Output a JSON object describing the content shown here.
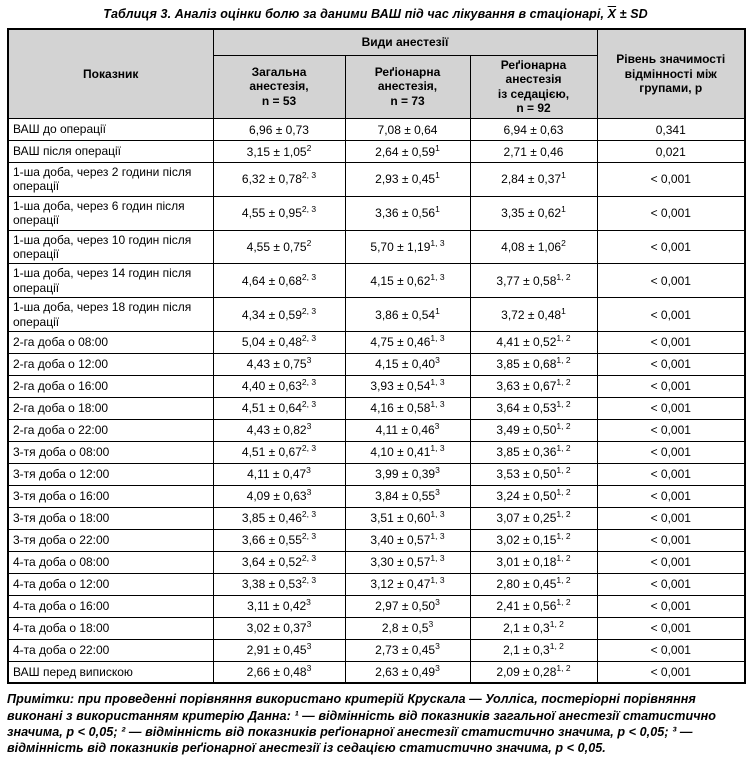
{
  "title": {
    "text": "Таблиця 3. Аналіз оцінки болю за даними ВАШ під час лікування в стаціонарі,",
    "mean_symbol": "X",
    "sd_suffix": "± SD"
  },
  "table": {
    "header": {
      "indicator": "Показник",
      "anesthesia_group": "Види анестезії",
      "col_general": "Загальна\nанестезія,\nn = 53",
      "col_regional": "Реґіонарна\nанестезія,\nn = 73",
      "col_regional_sedation": "Реґіонарна\nанестезія\nіз седацією,\nn = 92",
      "col_p": "Рівень значимості\nвідмінності між\nгрупами, р"
    },
    "rows": [
      {
        "label": "ВАШ до операції",
        "cells": [
          {
            "v": "6,96 ± 0,73",
            "s": ""
          },
          {
            "v": "7,08 ± 0,64",
            "s": ""
          },
          {
            "v": "6,94 ± 0,63",
            "s": ""
          }
        ],
        "p": "0,341"
      },
      {
        "label": "ВАШ після операції",
        "cells": [
          {
            "v": "3,15 ± 1,05",
            "s": "2"
          },
          {
            "v": "2,64 ± 0,59",
            "s": "1"
          },
          {
            "v": "2,71 ± 0,46",
            "s": ""
          }
        ],
        "p": "0,021"
      },
      {
        "label": "1-ша доба, через 2 години після операції",
        "cells": [
          {
            "v": "6,32 ± 0,78",
            "s": "2, 3"
          },
          {
            "v": "2,93 ± 0,45",
            "s": "1"
          },
          {
            "v": "2,84 ± 0,37",
            "s": "1"
          }
        ],
        "p": "< 0,001"
      },
      {
        "label": "1-ша доба, через 6 годин після операції",
        "cells": [
          {
            "v": "4,55 ± 0,95",
            "s": "2, 3"
          },
          {
            "v": "3,36 ± 0,56",
            "s": "1"
          },
          {
            "v": "3,35 ± 0,62",
            "s": "1"
          }
        ],
        "p": "< 0,001"
      },
      {
        "label": "1-ша доба, через 10 годин після операції",
        "cells": [
          {
            "v": "4,55 ± 0,75",
            "s": "2"
          },
          {
            "v": "5,70 ± 1,19",
            "s": "1, 3"
          },
          {
            "v": "4,08 ± 1,06",
            "s": "2"
          }
        ],
        "p": "< 0,001"
      },
      {
        "label": "1-ша доба, через 14 годин після операції",
        "cells": [
          {
            "v": "4,64 ± 0,68",
            "s": "2, 3"
          },
          {
            "v": "4,15 ± 0,62",
            "s": "1, 3"
          },
          {
            "v": "3,77 ± 0,58",
            "s": "1, 2"
          }
        ],
        "p": "< 0,001"
      },
      {
        "label": "1-ша доба, через 18 годин після операції",
        "cells": [
          {
            "v": "4,34 ± 0,59",
            "s": "2, 3"
          },
          {
            "v": "3,86 ± 0,54",
            "s": "1"
          },
          {
            "v": "3,72 ± 0,48",
            "s": "1"
          }
        ],
        "p": "< 0,001"
      },
      {
        "label": "2-га доба о 08:00",
        "cells": [
          {
            "v": "5,04 ± 0,48",
            "s": "2, 3"
          },
          {
            "v": "4,75 ± 0,46",
            "s": "1, 3"
          },
          {
            "v": "4,41 ± 0,52",
            "s": "1, 2"
          }
        ],
        "p": "< 0,001"
      },
      {
        "label": "2-га доба о 12:00",
        "cells": [
          {
            "v": "4,43 ± 0,75",
            "s": "3"
          },
          {
            "v": "4,15 ± 0,40",
            "s": "3"
          },
          {
            "v": "3,85 ± 0,68",
            "s": "1, 2"
          }
        ],
        "p": "< 0,001"
      },
      {
        "label": "2-га доба о 16:00",
        "cells": [
          {
            "v": "4,40 ± 0,63",
            "s": "2, 3"
          },
          {
            "v": "3,93 ± 0,54",
            "s": "1, 3"
          },
          {
            "v": "3,63 ± 0,67",
            "s": "1, 2"
          }
        ],
        "p": "< 0,001"
      },
      {
        "label": "2-га доба о 18:00",
        "cells": [
          {
            "v": "4,51 ± 0,64",
            "s": "2, 3"
          },
          {
            "v": "4,16 ± 0,58",
            "s": "1, 3"
          },
          {
            "v": "3,64 ± 0,53",
            "s": "1, 2"
          }
        ],
        "p": "< 0,001"
      },
      {
        "label": "2-га доба о 22:00",
        "cells": [
          {
            "v": "4,43 ± 0,82",
            "s": "3"
          },
          {
            "v": "4,11 ± 0,46",
            "s": "3"
          },
          {
            "v": "3,49 ± 0,50",
            "s": "1, 2"
          }
        ],
        "p": "< 0,001"
      },
      {
        "label": "3-тя доба о 08:00",
        "cells": [
          {
            "v": "4,51 ± 0,67",
            "s": "2, 3"
          },
          {
            "v": "4,10 ± 0,41",
            "s": "1, 3"
          },
          {
            "v": "3,85 ± 0,36",
            "s": "1, 2"
          }
        ],
        "p": "< 0,001"
      },
      {
        "label": "3-тя доба о 12:00",
        "cells": [
          {
            "v": "4,11 ± 0,47",
            "s": "3"
          },
          {
            "v": "3,99 ± 0,39",
            "s": "3"
          },
          {
            "v": "3,53 ± 0,50",
            "s": "1, 2"
          }
        ],
        "p": "< 0,001"
      },
      {
        "label": "3-тя доба о 16:00",
        "cells": [
          {
            "v": "4,09 ± 0,63",
            "s": "3"
          },
          {
            "v": "3,84 ± 0,55",
            "s": "3"
          },
          {
            "v": "3,24 ± 0,50",
            "s": "1, 2"
          }
        ],
        "p": "< 0,001"
      },
      {
        "label": "3-тя доба о 18:00",
        "cells": [
          {
            "v": "3,85 ± 0,46",
            "s": "2, 3"
          },
          {
            "v": "3,51 ± 0,60",
            "s": "1, 3"
          },
          {
            "v": "3,07 ± 0,25",
            "s": "1, 2"
          }
        ],
        "p": "< 0,001"
      },
      {
        "label": "3-тя доба о 22:00",
        "cells": [
          {
            "v": "3,66 ± 0,55",
            "s": "2, 3"
          },
          {
            "v": "3,40 ± 0,57",
            "s": "1, 3"
          },
          {
            "v": "3,02 ± 0,15",
            "s": "1, 2"
          }
        ],
        "p": "< 0,001"
      },
      {
        "label": "4-та доба о 08:00",
        "cells": [
          {
            "v": "3,64 ± 0,52",
            "s": "2, 3"
          },
          {
            "v": "3,30 ± 0,57",
            "s": "1, 3"
          },
          {
            "v": "3,01 ± 0,18",
            "s": "1, 2"
          }
        ],
        "p": "< 0,001"
      },
      {
        "label": "4-та доба о 12:00",
        "cells": [
          {
            "v": "3,38 ± 0,53",
            "s": "2, 3"
          },
          {
            "v": "3,12 ± 0,47",
            "s": "1, 3"
          },
          {
            "v": "2,80 ± 0,45",
            "s": "1, 2"
          }
        ],
        "p": "< 0,001"
      },
      {
        "label": "4-та доба о 16:00",
        "cells": [
          {
            "v": "3,11 ± 0,42",
            "s": "3"
          },
          {
            "v": "2,97 ± 0,50",
            "s": "3"
          },
          {
            "v": "2,41 ± 0,56",
            "s": "1, 2"
          }
        ],
        "p": "< 0,001"
      },
      {
        "label": "4-та доба о 18:00",
        "cells": [
          {
            "v": "3,02 ± 0,37",
            "s": "3"
          },
          {
            "v": "2,8 ± 0,5",
            "s": "3"
          },
          {
            "v": "2,1 ± 0,3",
            "s": "1, 2"
          }
        ],
        "p": "< 0,001"
      },
      {
        "label": "4-та доба о 22:00",
        "cells": [
          {
            "v": "2,91 ± 0,45",
            "s": "3"
          },
          {
            "v": "2,73 ± 0,45",
            "s": "3"
          },
          {
            "v": "2,1 ± 0,3",
            "s": "1, 2"
          }
        ],
        "p": "< 0,001"
      },
      {
        "label": "ВАШ перед випискою",
        "cells": [
          {
            "v": "2,66 ± 0,48",
            "s": "3"
          },
          {
            "v": "2,63 ± 0,49",
            "s": "3"
          },
          {
            "v": "2,09 ± 0,28",
            "s": "1, 2"
          }
        ],
        "p": "< 0,001"
      }
    ]
  },
  "footnote": "Примітки: при проведенні порівняння використано критерій Крускала — Уолліса, постеріорні порівняння виконані з використанням критерію Данна: ¹ — відмінність від показників загальної анестезії статистично значима, р < 0,05; ² — відмінність від показників реґіонарної анестезії статистично значима, р < 0,05; ³ — відмінність від показників реґіонарної анестезії із седацією статистично значима, р < 0,05.",
  "colors": {
    "header_bg": "#d3d3d3",
    "border": "#000000",
    "text": "#000000"
  }
}
